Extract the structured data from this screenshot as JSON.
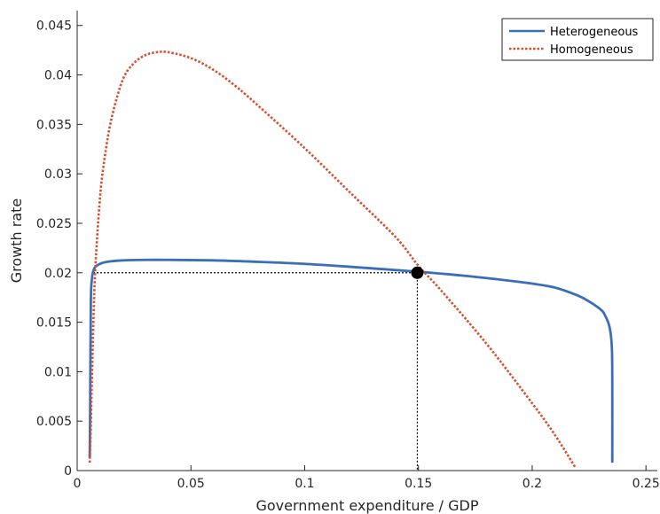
{
  "chart_data": {
    "type": "line",
    "xlabel": "Government expenditure / GDP",
    "ylabel": "Growth rate",
    "xlim": [
      0,
      0.255
    ],
    "ylim": [
      0,
      0.0465
    ],
    "xticks": [
      0,
      0.05,
      0.1,
      0.15,
      0.2,
      0.25
    ],
    "xtick_labels": [
      "0",
      "0.05",
      "0.1",
      "0.15",
      "0.2",
      "0.25"
    ],
    "yticks": [
      0,
      0.005,
      0.01,
      0.015,
      0.02,
      0.025,
      0.03,
      0.035,
      0.04,
      0.045
    ],
    "ytick_labels": [
      "0",
      "0.005",
      "0.01",
      "0.015",
      "0.02",
      "0.025",
      "0.03",
      "0.035",
      "0.04",
      "0.045"
    ],
    "grid": false,
    "legend_position": "top-right",
    "series": [
      {
        "name": "Heterogeneous",
        "color": "#3a6fb7",
        "style": "solid",
        "x": [
          0.0055,
          0.0057,
          0.006,
          0.0065,
          0.007,
          0.008,
          0.01,
          0.013,
          0.02,
          0.03,
          0.04,
          0.06,
          0.08,
          0.1,
          0.12,
          0.15,
          0.17,
          0.19,
          0.2,
          0.21,
          0.22,
          0.225,
          0.23,
          0.232,
          0.234,
          0.235,
          0.2352,
          0.2352
        ],
        "y": [
          0.0013,
          0.006,
          0.017,
          0.0194,
          0.0201,
          0.0206,
          0.0209,
          0.0211,
          0.02125,
          0.0213,
          0.0213,
          0.02125,
          0.0211,
          0.0209,
          0.0206,
          0.0201,
          0.0197,
          0.0192,
          0.0189,
          0.0185,
          0.0177,
          0.0171,
          0.0163,
          0.0157,
          0.0145,
          0.0125,
          0.009,
          0.0008
        ]
      },
      {
        "name": "Homogeneous",
        "color": "#d6502f",
        "style": "dotted",
        "x": [
          0.0055,
          0.006,
          0.007,
          0.008,
          0.01,
          0.012,
          0.015,
          0.02,
          0.025,
          0.03,
          0.035,
          0.04,
          0.05,
          0.06,
          0.07,
          0.08,
          0.1,
          0.12,
          0.14,
          0.15,
          0.16,
          0.18,
          0.2,
          0.21,
          0.219
        ],
        "y": [
          0.0008,
          0.0045,
          0.014,
          0.0205,
          0.0275,
          0.0315,
          0.0355,
          0.0395,
          0.0412,
          0.042,
          0.0423,
          0.0423,
          0.0417,
          0.0405,
          0.0388,
          0.0368,
          0.0326,
          0.0281,
          0.0236,
          0.0207,
          0.0182,
          0.0128,
          0.0068,
          0.0036,
          0.0003
        ]
      }
    ],
    "annotations": [
      {
        "type": "marker",
        "x": 0.1495,
        "y": 0.02,
        "color": "#000000"
      },
      {
        "type": "dotted-guide",
        "x": 0.1495,
        "y": 0.02,
        "color": "#000000"
      }
    ]
  }
}
